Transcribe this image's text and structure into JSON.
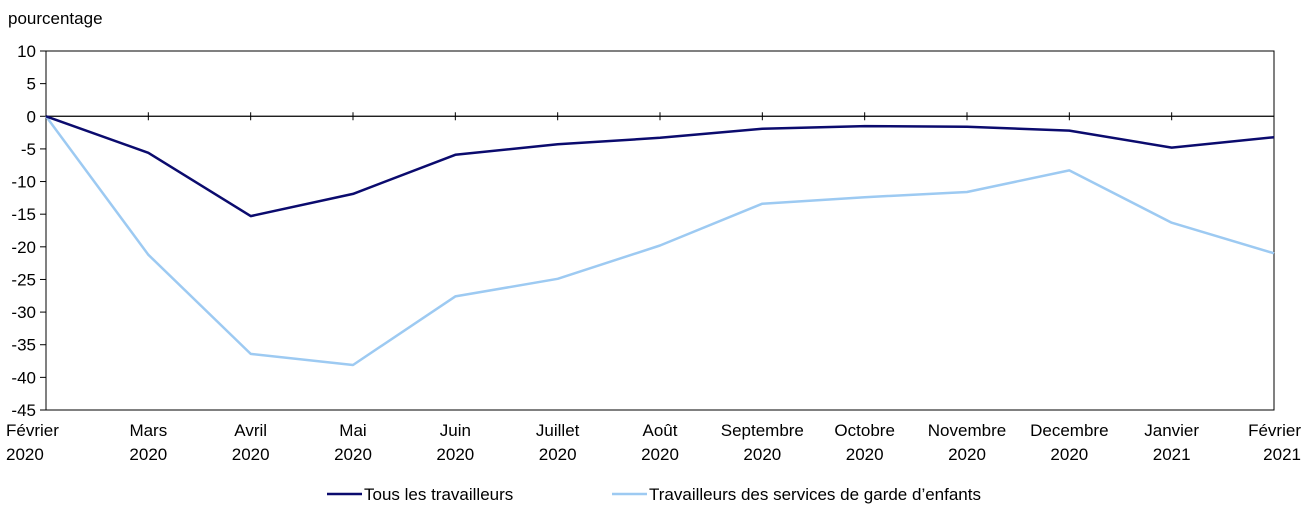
{
  "chart_data": {
    "type": "line",
    "ylabel": "pourcentage",
    "ylim": [
      -45,
      10
    ],
    "y_ticks": [
      "10",
      "5",
      "0",
      "-5",
      "-10",
      "-15",
      "-20",
      "-25",
      "-30",
      "-35",
      "-40",
      "-45"
    ],
    "y_tick_values": [
      10,
      5,
      0,
      -5,
      -10,
      -15,
      -20,
      -25,
      -30,
      -35,
      -40,
      -45
    ],
    "categories": [
      [
        "Février",
        "2020"
      ],
      [
        "Mars",
        "2020"
      ],
      [
        "Avril",
        "2020"
      ],
      [
        "Mai",
        "2020"
      ],
      [
        "Juin",
        "2020"
      ],
      [
        "Juillet",
        "2020"
      ],
      [
        "Août",
        "2020"
      ],
      [
        "Septembre",
        "2020"
      ],
      [
        "Octobre",
        "2020"
      ],
      [
        "Novembre",
        "2020"
      ],
      [
        "Decembre",
        "2020"
      ],
      [
        "Janvier",
        "2021"
      ],
      [
        "Février",
        "2021"
      ]
    ],
    "series": [
      {
        "name": "Tous les travailleurs",
        "color": "#0b0b6e",
        "values": [
          0,
          -5.6,
          -15.3,
          -11.9,
          -5.9,
          -4.3,
          -3.3,
          -1.9,
          -1.5,
          -1.6,
          -2.2,
          -4.8,
          -3.2
        ]
      },
      {
        "name": "Travailleurs des services de garde d’enfants",
        "color": "#9dcaf2",
        "values": [
          0,
          -21.2,
          -36.4,
          -38.1,
          -27.6,
          -24.9,
          -19.8,
          -13.4,
          -12.4,
          -11.6,
          -8.3,
          -16.3,
          -21.0
        ]
      }
    ],
    "grid": false,
    "legend_position": "bottom-center"
  }
}
